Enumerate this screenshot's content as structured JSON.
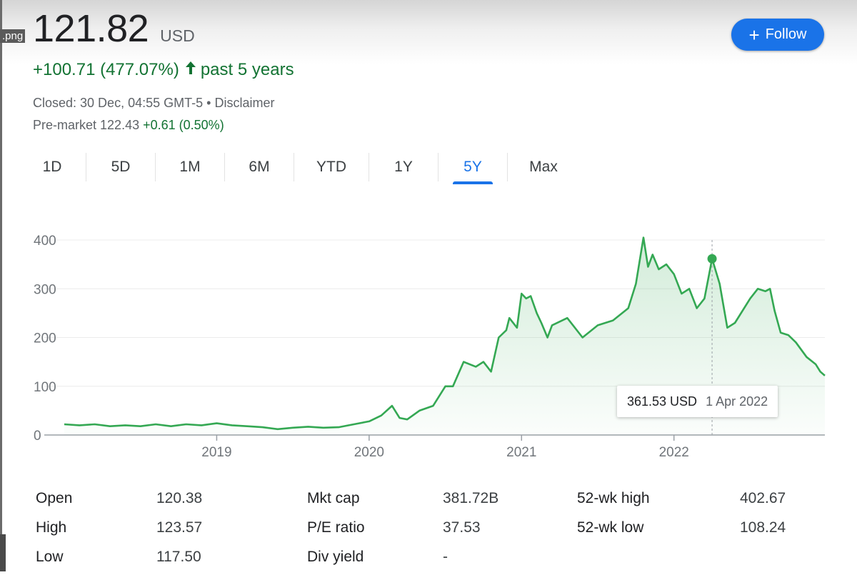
{
  "window": {
    "file_label": ".png"
  },
  "quote": {
    "price": "121.82",
    "currency": "USD",
    "change": "+100.71 (477.07%)",
    "change_period": "past 5 years",
    "closed_text": "Closed: 30 Dec, 04:55 GMT-5",
    "separator": "•",
    "disclaimer": "Disclaimer",
    "premarket_label": "Pre-market",
    "premarket_price": "122.43",
    "premarket_change": "+0.61 (0.50%)"
  },
  "follow_button": {
    "label": "Follow",
    "icon": "plus-icon"
  },
  "ranges": [
    {
      "label": "1D",
      "active": false
    },
    {
      "label": "5D",
      "active": false
    },
    {
      "label": "1M",
      "active": false
    },
    {
      "label": "6M",
      "active": false
    },
    {
      "label": "YTD",
      "active": false
    },
    {
      "label": "1Y",
      "active": false
    },
    {
      "label": "5Y",
      "active": true
    },
    {
      "label": "Max",
      "active": false
    }
  ],
  "tooltip": {
    "price": "361.53 USD",
    "date": "1 Apr 2022"
  },
  "chart_data": {
    "type": "area",
    "x_ticks": [
      "2019",
      "2020",
      "2021",
      "2022"
    ],
    "y_ticks": [
      "0",
      "100",
      "200",
      "300",
      "400"
    ],
    "ylim": [
      0,
      400
    ],
    "xlim": [
      2018.0,
      2022.99
    ],
    "grid": true,
    "line_color": "#34a853",
    "fill_color": "#34a853",
    "highlight": {
      "x": 2022.25,
      "y": 361.53
    },
    "x": [
      2018.0,
      2018.1,
      2018.2,
      2018.3,
      2018.4,
      2018.5,
      2018.6,
      2018.7,
      2018.8,
      2018.9,
      2019.0,
      2019.1,
      2019.2,
      2019.3,
      2019.4,
      2019.5,
      2019.6,
      2019.7,
      2019.8,
      2019.9,
      2020.0,
      2020.08,
      2020.15,
      2020.2,
      2020.25,
      2020.33,
      2020.42,
      2020.5,
      2020.55,
      2020.62,
      2020.7,
      2020.75,
      2020.8,
      2020.85,
      2020.9,
      2020.92,
      2020.97,
      2021.0,
      2021.03,
      2021.06,
      2021.1,
      2021.13,
      2021.17,
      2021.2,
      2021.3,
      2021.4,
      2021.5,
      2021.6,
      2021.7,
      2021.75,
      2021.8,
      2021.83,
      2021.86,
      2021.9,
      2021.95,
      2022.0,
      2022.05,
      2022.1,
      2022.15,
      2022.2,
      2022.25,
      2022.3,
      2022.35,
      2022.4,
      2022.5,
      2022.55,
      2022.6,
      2022.63,
      2022.66,
      2022.7,
      2022.75,
      2022.8,
      2022.87,
      2022.93,
      2022.96,
      2022.99
    ],
    "values": [
      22,
      20,
      22,
      18,
      20,
      18,
      22,
      18,
      22,
      20,
      24,
      20,
      18,
      16,
      12,
      15,
      17,
      15,
      16,
      22,
      28,
      40,
      60,
      35,
      32,
      50,
      60,
      100,
      100,
      150,
      140,
      150,
      130,
      200,
      215,
      240,
      220,
      290,
      280,
      285,
      250,
      230,
      200,
      225,
      240,
      200,
      225,
      235,
      260,
      310,
      405,
      345,
      370,
      340,
      350,
      330,
      290,
      300,
      260,
      280,
      361.53,
      310,
      220,
      230,
      280,
      300,
      295,
      300,
      255,
      210,
      205,
      190,
      160,
      145,
      130,
      121.82
    ]
  },
  "stats": [
    {
      "l1": "Open",
      "v1": "120.38",
      "l2": "Mkt cap",
      "v2": "381.72B",
      "l3": "52-wk high",
      "v3": "402.67"
    },
    {
      "l1": "High",
      "v1": "123.57",
      "l2": "P/E ratio",
      "v2": "37.53",
      "l3": "52-wk low",
      "v3": "108.24"
    },
    {
      "l1": "Low",
      "v1": "117.50",
      "l2": "Div yield",
      "v2": "-",
      "l3": "",
      "v3": ""
    }
  ]
}
